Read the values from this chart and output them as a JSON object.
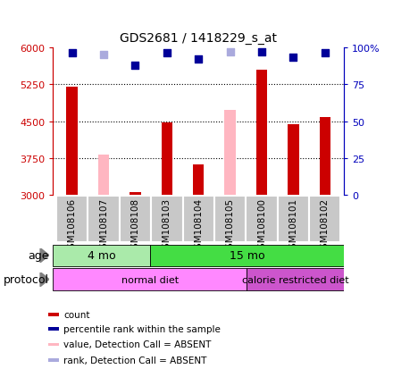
{
  "title": "GDS2681 / 1418229_s_at",
  "samples": [
    "GSM108106",
    "GSM108107",
    "GSM108108",
    "GSM108103",
    "GSM108104",
    "GSM108105",
    "GSM108100",
    "GSM108101",
    "GSM108102"
  ],
  "count_values": [
    5200,
    null,
    3060,
    4480,
    3620,
    null,
    5550,
    4430,
    4580
  ],
  "count_absent_values": [
    null,
    3820,
    null,
    null,
    null,
    4720,
    null,
    null,
    null
  ],
  "rank_values": [
    96,
    null,
    88,
    96,
    92,
    null,
    97,
    93,
    96
  ],
  "rank_absent_values": [
    null,
    95,
    null,
    null,
    null,
    97,
    null,
    null,
    null
  ],
  "ylim_left": [
    3000,
    6000
  ],
  "ylim_right": [
    0,
    100
  ],
  "yticks_left": [
    3000,
    3750,
    4500,
    5250,
    6000
  ],
  "yticks_right": [
    0,
    25,
    50,
    75,
    100
  ],
  "ytick_labels_left": [
    "3000",
    "3750",
    "4500",
    "5250",
    "6000"
  ],
  "ytick_labels_right": [
    "0",
    "25",
    "50",
    "75",
    "100%"
  ],
  "age_groups": [
    {
      "label": "4 mo",
      "start": 0,
      "end": 3,
      "color": "#AAEAAA"
    },
    {
      "label": "15 mo",
      "start": 3,
      "end": 9,
      "color": "#44DD44"
    }
  ],
  "protocol_groups": [
    {
      "label": "normal diet",
      "start": 0,
      "end": 6,
      "color": "#FF88FF"
    },
    {
      "label": "calorie restricted diet",
      "start": 6,
      "end": 9,
      "color": "#CC55CC"
    }
  ],
  "age_label": "age",
  "protocol_label": "protocol",
  "bar_color_present": "#CC0000",
  "bar_color_absent": "#FFB6C1",
  "dot_color_present": "#000099",
  "dot_color_absent": "#AAAADD",
  "legend_items": [
    {
      "color": "#CC0000",
      "label": "count"
    },
    {
      "color": "#000099",
      "label": "percentile rank within the sample"
    },
    {
      "color": "#FFB6C1",
      "label": "value, Detection Call = ABSENT"
    },
    {
      "color": "#AAAADD",
      "label": "rank, Detection Call = ABSENT"
    }
  ],
  "dot_size": 40,
  "bar_width": 0.35,
  "left_axis_color": "#CC0000",
  "right_axis_color": "#0000BB",
  "sample_box_color": "#C8C8C8",
  "sample_box_edge": "#FFFFFF"
}
